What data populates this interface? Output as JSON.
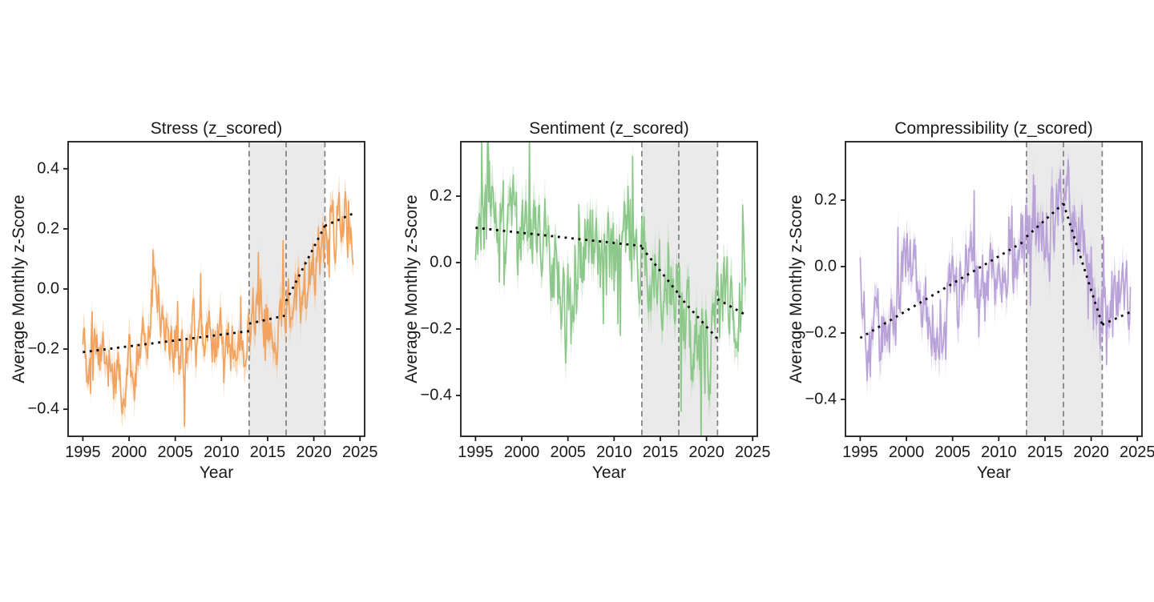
{
  "figure": {
    "background": "#ffffff",
    "text_color": "#1a1a1a",
    "shaded_region_color": "rgba(160,160,160,0.22)",
    "event_line_color": "#7f7f7f",
    "trend_color": "#000000",
    "axis_color": "#1a1a1a"
  },
  "chart_data": [
    {
      "type": "line",
      "title": "Stress (z_scored)",
      "xlabel": "Year",
      "ylabel": "Average Monthly z-Score",
      "legend": "none",
      "grid": false,
      "line_color": "#f2a360",
      "band_color": "rgba(244,176,110,0.45)",
      "xlim": [
        1993.4,
        2025.5
      ],
      "ylim": [
        -0.49,
        0.49
      ],
      "xticks": [
        1995,
        2000,
        2005,
        2010,
        2015,
        2020,
        2025
      ],
      "yticks": [
        0.4,
        0.2,
        0,
        -0.2,
        -0.4
      ],
      "shaded_span": [
        2013.0,
        2021.2
      ],
      "event_lines": [
        2013.0,
        2017.0,
        2021.2
      ],
      "trend_segments": [
        [
          [
            1995,
            -0.21
          ],
          [
            2013,
            -0.14
          ]
        ],
        [
          [
            2013,
            -0.115
          ],
          [
            2017,
            -0.088
          ]
        ],
        [
          [
            2017,
            -0.04
          ],
          [
            2021.2,
            0.21
          ]
        ],
        [
          [
            2021.2,
            0.21
          ],
          [
            2024.4,
            0.253
          ]
        ]
      ],
      "series_start": 1995.0,
      "series_end": 2024.33,
      "series_anchors": [
        [
          1995,
          -0.12
        ],
        [
          1995.5,
          -0.2
        ],
        [
          1996,
          -0.22
        ],
        [
          1997,
          -0.2
        ],
        [
          1997.5,
          -0.26
        ],
        [
          1998,
          -0.24
        ],
        [
          1998.6,
          -0.3
        ],
        [
          1999,
          -0.33
        ],
        [
          1999.5,
          -0.28
        ],
        [
          2000,
          -0.26
        ],
        [
          2000.5,
          -0.3
        ],
        [
          2001,
          -0.22
        ],
        [
          2001.5,
          -0.15
        ],
        [
          2002,
          -0.12
        ],
        [
          2002.5,
          -0.05
        ],
        [
          2003,
          -0.04
        ],
        [
          2003.5,
          -0.08
        ],
        [
          2004,
          -0.1
        ],
        [
          2004.5,
          -0.15
        ],
        [
          2005,
          -0.16
        ],
        [
          2005.5,
          -0.2
        ],
        [
          2006,
          -0.22
        ],
        [
          2006.5,
          -0.18
        ],
        [
          2007,
          -0.13
        ],
        [
          2007.5,
          -0.08
        ],
        [
          2008,
          -0.1
        ],
        [
          2008.5,
          -0.14
        ],
        [
          2009,
          -0.18
        ],
        [
          2009.5,
          -0.16
        ],
        [
          2010,
          -0.14
        ],
        [
          2010.5,
          -0.16
        ],
        [
          2011,
          -0.18
        ],
        [
          2011.5,
          -0.16
        ],
        [
          2012,
          -0.22
        ],
        [
          2012.5,
          -0.24
        ],
        [
          2013,
          -0.16
        ],
        [
          2013.5,
          -0.1
        ],
        [
          2014,
          -0.06
        ],
        [
          2014.5,
          -0.1
        ],
        [
          2015,
          -0.12
        ],
        [
          2015.5,
          -0.14
        ],
        [
          2016,
          -0.2
        ],
        [
          2016.5,
          -0.12
        ],
        [
          2017,
          -0.06
        ],
        [
          2017.5,
          -0.04
        ],
        [
          2018,
          -0.02
        ],
        [
          2018.5,
          -0.05
        ],
        [
          2019,
          0.02
        ],
        [
          2019.5,
          0.05
        ],
        [
          2020,
          0.08
        ],
        [
          2020.5,
          0.12
        ],
        [
          2021,
          0.14
        ],
        [
          2021.5,
          0.16
        ],
        [
          2022,
          0.18
        ],
        [
          2022.5,
          0.22
        ],
        [
          2023,
          0.26
        ],
        [
          2023.5,
          0.22
        ],
        [
          2024,
          0.2
        ],
        [
          2024.33,
          -0.05
        ]
      ],
      "noise": {
        "amplitude": 0.115,
        "seed": 101,
        "spike_prob": 0.1,
        "spike_scale": 1.9
      },
      "band_halfwidth": 0.045
    },
    {
      "type": "line",
      "title": "Sentiment (z_scored)",
      "xlabel": "Year",
      "ylabel": "Average Monthly z-Score",
      "legend": "none",
      "grid": false,
      "line_color": "#8cc88a",
      "band_color": "rgba(150,205,148,0.45)",
      "xlim": [
        1993.4,
        2025.5
      ],
      "ylim": [
        -0.523,
        0.364
      ],
      "xticks": [
        1995,
        2000,
        2005,
        2010,
        2015,
        2020,
        2025
      ],
      "yticks": [
        0.2,
        0,
        -0.2,
        -0.4
      ],
      "shaded_span": [
        2013.0,
        2021.2
      ],
      "event_lines": [
        2013.0,
        2017.0,
        2021.2
      ],
      "trend_segments": [
        [
          [
            1995,
            0.105
          ],
          [
            2013,
            0.05
          ]
        ],
        [
          [
            2013,
            0.045
          ],
          [
            2017,
            -0.095
          ]
        ],
        [
          [
            2017,
            -0.1
          ],
          [
            2021.2,
            -0.23
          ]
        ],
        [
          [
            2021.2,
            -0.11
          ],
          [
            2024.4,
            -0.16
          ]
        ]
      ],
      "series_start": 1995.0,
      "series_end": 2024.33,
      "series_anchors": [
        [
          1995,
          0.1
        ],
        [
          1995.5,
          0.16
        ],
        [
          1996,
          0.12
        ],
        [
          1996.5,
          0.18
        ],
        [
          1997,
          0.1
        ],
        [
          1997.5,
          0.16
        ],
        [
          1998,
          0.14
        ],
        [
          1998.5,
          0.08
        ],
        [
          1999,
          0.12
        ],
        [
          1999.5,
          0.06
        ],
        [
          2000,
          0.1
        ],
        [
          2000.5,
          0.04
        ],
        [
          2001,
          0.08
        ],
        [
          2001.5,
          0.12
        ],
        [
          2002,
          0.1
        ],
        [
          2002.5,
          0.06
        ],
        [
          2003,
          0.02
        ],
        [
          2003.5,
          -0.02
        ],
        [
          2004,
          -0.08
        ],
        [
          2004.5,
          -0.16
        ],
        [
          2005,
          -0.12
        ],
        [
          2005.5,
          -0.18
        ],
        [
          2006,
          -0.06
        ],
        [
          2006.5,
          0.02
        ],
        [
          2007,
          0.1
        ],
        [
          2007.5,
          0.12
        ],
        [
          2008,
          0.08
        ],
        [
          2008.5,
          0.05
        ],
        [
          2009,
          0.02
        ],
        [
          2009.5,
          0
        ],
        [
          2010,
          -0.02
        ],
        [
          2010.5,
          0.04
        ],
        [
          2011,
          0.1
        ],
        [
          2011.5,
          0.14
        ],
        [
          2012,
          0.1
        ],
        [
          2012.5,
          0.04
        ],
        [
          2013,
          0.02
        ],
        [
          2013.5,
          -0.02
        ],
        [
          2014,
          -0.04
        ],
        [
          2014.5,
          -0.08
        ],
        [
          2015,
          -0.06
        ],
        [
          2015.5,
          -0.1
        ],
        [
          2016,
          -0.08
        ],
        [
          2016.5,
          -0.12
        ],
        [
          2017,
          -0.1
        ],
        [
          2017.5,
          -0.14
        ],
        [
          2018,
          -0.18
        ],
        [
          2018.5,
          -0.22
        ],
        [
          2019,
          -0.26
        ],
        [
          2019.5,
          -0.22
        ],
        [
          2020,
          -0.28
        ],
        [
          2020.5,
          -0.24
        ],
        [
          2021,
          -0.18
        ],
        [
          2021.5,
          -0.1
        ],
        [
          2022,
          -0.06
        ],
        [
          2022.5,
          -0.1
        ],
        [
          2023,
          -0.12
        ],
        [
          2023.5,
          -0.1
        ],
        [
          2024,
          -0.14
        ],
        [
          2024.33,
          -0.16
        ]
      ],
      "noise": {
        "amplitude": 0.16,
        "seed": 202,
        "spike_prob": 0.1,
        "spike_scale": 1.7
      },
      "band_halfwidth": 0.05
    },
    {
      "type": "line",
      "title": "Compressibility (z_scored)",
      "xlabel": "Year",
      "ylabel": "Average Monthly z-Score",
      "legend": "none",
      "grid": false,
      "line_color": "#b9a2d8",
      "band_color": "rgba(190,170,220,0.45)",
      "xlim": [
        1993.4,
        2025.5
      ],
      "ylim": [
        -0.511,
        0.376
      ],
      "xticks": [
        1995,
        2000,
        2005,
        2010,
        2015,
        2020,
        2025
      ],
      "yticks": [
        0.2,
        0,
        -0.2,
        -0.4
      ],
      "shaded_span": [
        2013.0,
        2021.2
      ],
      "event_lines": [
        2013.0,
        2017.0,
        2021.2
      ],
      "trend_segments": [
        [
          [
            1995,
            -0.215
          ],
          [
            2013,
            0.08
          ]
        ],
        [
          [
            2013,
            0.09
          ],
          [
            2017,
            0.19
          ]
        ],
        [
          [
            2017,
            0.19
          ],
          [
            2021.2,
            -0.175
          ]
        ],
        [
          [
            2021.2,
            -0.175
          ],
          [
            2024.4,
            -0.135
          ]
        ]
      ],
      "series_start": 1995.0,
      "series_end": 2024.33,
      "series_anchors": [
        [
          1995,
          -0.06
        ],
        [
          1995.5,
          -0.22
        ],
        [
          1996,
          -0.28
        ],
        [
          1996.5,
          -0.24
        ],
        [
          1997,
          -0.18
        ],
        [
          1997.5,
          -0.24
        ],
        [
          1998,
          -0.18
        ],
        [
          1998.5,
          -0.14
        ],
        [
          1999,
          -0.12
        ],
        [
          1999.5,
          -0.08
        ],
        [
          2000,
          -0.02
        ],
        [
          2000.5,
          0.02
        ],
        [
          2001,
          -0.04
        ],
        [
          2001.5,
          -0.02
        ],
        [
          2002,
          -0.12
        ],
        [
          2002.5,
          -0.16
        ],
        [
          2003,
          -0.18
        ],
        [
          2003.5,
          -0.14
        ],
        [
          2004,
          -0.16
        ],
        [
          2004.5,
          -0.12
        ],
        [
          2005,
          -0.08
        ],
        [
          2005.5,
          -0.1
        ],
        [
          2006,
          -0.06
        ],
        [
          2006.5,
          -0.02
        ],
        [
          2007,
          0
        ],
        [
          2007.5,
          -0.04
        ],
        [
          2008,
          -0.06
        ],
        [
          2008.5,
          -0.02
        ],
        [
          2009,
          0
        ],
        [
          2009.5,
          -0.04
        ],
        [
          2010,
          0.02
        ],
        [
          2010.5,
          0
        ],
        [
          2011,
          -0.02
        ],
        [
          2011.5,
          0.02
        ],
        [
          2012,
          0.04
        ],
        [
          2012.5,
          0.08
        ],
        [
          2013,
          0.1
        ],
        [
          2013.5,
          0.14
        ],
        [
          2014,
          0.12
        ],
        [
          2014.5,
          0.1
        ],
        [
          2015,
          0.12
        ],
        [
          2015.5,
          0.16
        ],
        [
          2016,
          0.14
        ],
        [
          2016.5,
          0.18
        ],
        [
          2017,
          0.2
        ],
        [
          2017.5,
          0.16
        ],
        [
          2018,
          0.12
        ],
        [
          2018.5,
          0.08
        ],
        [
          2019,
          0.06
        ],
        [
          2019.5,
          0
        ],
        [
          2020,
          -0.12
        ],
        [
          2020.5,
          -0.2
        ],
        [
          2021,
          -0.16
        ],
        [
          2021.5,
          -0.12
        ],
        [
          2022,
          -0.1
        ],
        [
          2022.5,
          -0.12
        ],
        [
          2023,
          -0.08
        ],
        [
          2023.5,
          -0.1
        ],
        [
          2024,
          -0.12
        ],
        [
          2024.33,
          -0.1
        ]
      ],
      "noise": {
        "amplitude": 0.13,
        "seed": 303,
        "spike_prob": 0.1,
        "spike_scale": 1.7
      },
      "band_halfwidth": 0.045
    }
  ]
}
